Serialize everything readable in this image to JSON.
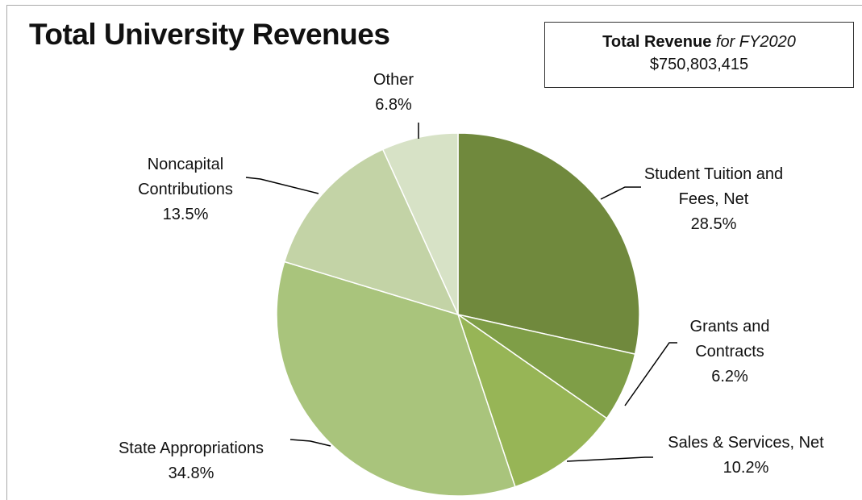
{
  "chart_data": {
    "type": "pie",
    "title": "Total University Revenues",
    "annotation": {
      "label": "Total Revenue",
      "period": "for FY2020",
      "value": "$750,803,415"
    },
    "categories": [
      "Student Tuition and Fees, Net",
      "Grants and Contracts",
      "Sales & Services, Net",
      "State Appropriations",
      "Noncapital Contributions",
      "Other"
    ],
    "values": [
      28.5,
      6.2,
      10.2,
      34.8,
      13.5,
      6.8
    ],
    "value_labels": [
      "28.5%",
      "6.2%",
      "10.2%",
      "34.8%",
      "13.5%",
      "6.8%"
    ],
    "colors": [
      "#70893d",
      "#7f9e47",
      "#97b556",
      "#a9c47c",
      "#c3d3a6",
      "#d7e2c6"
    ]
  }
}
